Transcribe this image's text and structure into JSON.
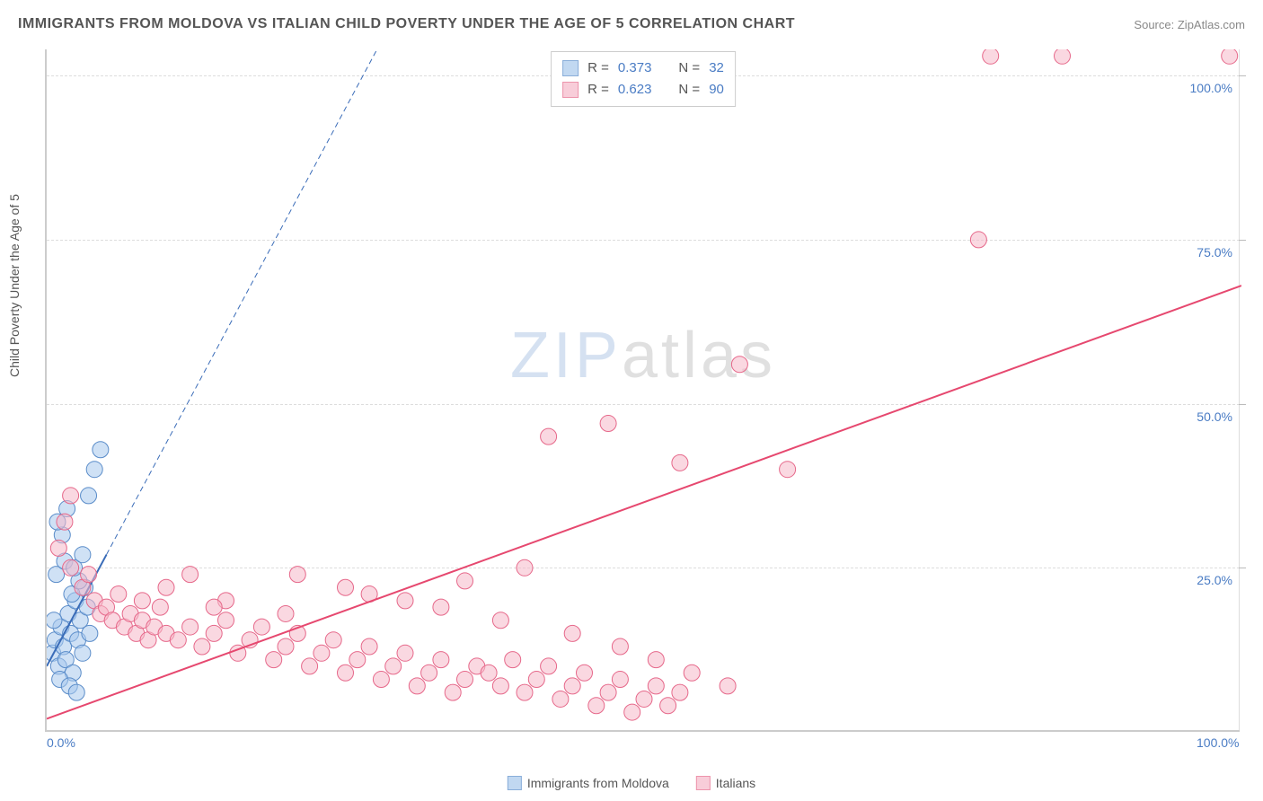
{
  "title": "IMMIGRANTS FROM MOLDOVA VS ITALIAN CHILD POVERTY UNDER THE AGE OF 5 CORRELATION CHART",
  "source_label": "Source:",
  "source_name": "ZipAtlas.com",
  "y_axis_label": "Child Poverty Under the Age of 5",
  "watermark": {
    "left": "ZIP",
    "right": "atlas"
  },
  "chart": {
    "type": "scatter",
    "xlim": [
      0,
      100
    ],
    "ylim": [
      0,
      104
    ],
    "x_ticks": [
      {
        "v": 0,
        "label": "0.0%"
      },
      {
        "v": 100,
        "label": "100.0%"
      }
    ],
    "y_ticks": [
      {
        "v": 25,
        "label": "25.0%"
      },
      {
        "v": 50,
        "label": "50.0%"
      },
      {
        "v": 75,
        "label": "75.0%"
      },
      {
        "v": 100,
        "label": "100.0%"
      }
    ],
    "grid_color": "#dddddd",
    "background_color": "#ffffff",
    "axis_label_color": "#555555",
    "tick_label_color": "#4a7cc4",
    "marker_radius": 9,
    "marker_stroke_width": 1,
    "series": [
      {
        "name": "Immigrants from Moldova",
        "legend_label": "Immigrants from Moldova",
        "fill": "#a8c8ec",
        "stroke": "#5a8cc9",
        "fill_opacity": 0.55,
        "R": "0.373",
        "N": "32",
        "regression": {
          "x1": 0,
          "y1": 10,
          "x2": 5,
          "y2": 27,
          "color": "#3a6cb8",
          "width": 2,
          "extend_dashed_to_x": 30,
          "dash": "6,4"
        },
        "points": [
          [
            0.5,
            12
          ],
          [
            0.7,
            14
          ],
          [
            1.0,
            10
          ],
          [
            1.2,
            16
          ],
          [
            1.4,
            13
          ],
          [
            1.6,
            11
          ],
          [
            1.8,
            18
          ],
          [
            2.0,
            15
          ],
          [
            2.2,
            9
          ],
          [
            2.4,
            20
          ],
          [
            2.6,
            14
          ],
          [
            2.8,
            17
          ],
          [
            3.0,
            12
          ],
          [
            3.2,
            22
          ],
          [
            3.4,
            19
          ],
          [
            3.6,
            15
          ],
          [
            0.8,
            24
          ],
          [
            1.5,
            26
          ],
          [
            2.1,
            21
          ],
          [
            2.7,
            23
          ],
          [
            1.1,
            8
          ],
          [
            1.9,
            7
          ],
          [
            0.6,
            17
          ],
          [
            2.3,
            25
          ],
          [
            3.0,
            27
          ],
          [
            1.3,
            30
          ],
          [
            0.9,
            32
          ],
          [
            3.5,
            36
          ],
          [
            4.0,
            40
          ],
          [
            4.5,
            43
          ],
          [
            1.7,
            34
          ],
          [
            2.5,
            6
          ]
        ]
      },
      {
        "name": "Italians",
        "legend_label": "Italians",
        "fill": "#f6b8c9",
        "stroke": "#e6688a",
        "fill_opacity": 0.55,
        "R": "0.623",
        "N": "90",
        "regression": {
          "x1": 0,
          "y1": 2,
          "x2": 100,
          "y2": 68,
          "color": "#e6486f",
          "width": 2
        },
        "points": [
          [
            1,
            28
          ],
          [
            1.5,
            32
          ],
          [
            2,
            36
          ],
          [
            2,
            25
          ],
          [
            3,
            22
          ],
          [
            3.5,
            24
          ],
          [
            4,
            20
          ],
          [
            4.5,
            18
          ],
          [
            5,
            19
          ],
          [
            5.5,
            17
          ],
          [
            6,
            21
          ],
          [
            6.5,
            16
          ],
          [
            7,
            18
          ],
          [
            7.5,
            15
          ],
          [
            8,
            17
          ],
          [
            8.5,
            14
          ],
          [
            9,
            16
          ],
          [
            9.5,
            19
          ],
          [
            10,
            15
          ],
          [
            11,
            14
          ],
          [
            12,
            16
          ],
          [
            13,
            13
          ],
          [
            14,
            15
          ],
          [
            15,
            17
          ],
          [
            16,
            12
          ],
          [
            17,
            14
          ],
          [
            18,
            16
          ],
          [
            19,
            11
          ],
          [
            20,
            13
          ],
          [
            21,
            15
          ],
          [
            22,
            10
          ],
          [
            23,
            12
          ],
          [
            24,
            14
          ],
          [
            25,
            9
          ],
          [
            26,
            11
          ],
          [
            27,
            13
          ],
          [
            28,
            8
          ],
          [
            29,
            10
          ],
          [
            30,
            12
          ],
          [
            31,
            7
          ],
          [
            32,
            9
          ],
          [
            33,
            11
          ],
          [
            34,
            6
          ],
          [
            35,
            8
          ],
          [
            36,
            10
          ],
          [
            37,
            9
          ],
          [
            38,
            7
          ],
          [
            39,
            11
          ],
          [
            40,
            6
          ],
          [
            41,
            8
          ],
          [
            42,
            10
          ],
          [
            43,
            5
          ],
          [
            44,
            7
          ],
          [
            45,
            9
          ],
          [
            46,
            4
          ],
          [
            47,
            6
          ],
          [
            48,
            8
          ],
          [
            49,
            3
          ],
          [
            50,
            5
          ],
          [
            51,
            7
          ],
          [
            52,
            4
          ],
          [
            53,
            6
          ],
          [
            40,
            25
          ],
          [
            35,
            23
          ],
          [
            30,
            20
          ],
          [
            25,
            22
          ],
          [
            20,
            18
          ],
          [
            15,
            20
          ],
          [
            21,
            24
          ],
          [
            27,
            21
          ],
          [
            33,
            19
          ],
          [
            38,
            17
          ],
          [
            44,
            15
          ],
          [
            48,
            13
          ],
          [
            51,
            11
          ],
          [
            54,
            9
          ],
          [
            57,
            7
          ],
          [
            47,
            47
          ],
          [
            42,
            45
          ],
          [
            53,
            41
          ],
          [
            58,
            56
          ],
          [
            62,
            40
          ],
          [
            79,
            103
          ],
          [
            85,
            103
          ],
          [
            99,
            103
          ],
          [
            78,
            75
          ],
          [
            10,
            22
          ],
          [
            12,
            24
          ],
          [
            14,
            19
          ],
          [
            8,
            20
          ]
        ]
      }
    ]
  },
  "stats_box": {
    "R_label": "R =",
    "N_label": "N ="
  },
  "bottom_legend_labels": [
    "Immigrants from Moldova",
    "Italians"
  ]
}
